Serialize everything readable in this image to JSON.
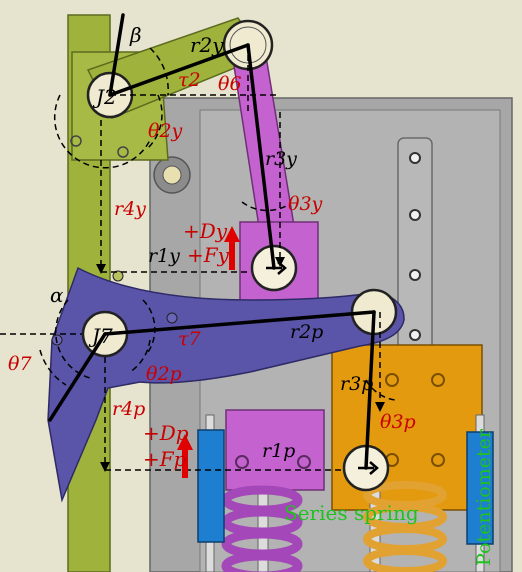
{
  "labels": {
    "beta": "β",
    "r2y": "r2y",
    "tau2": "τ2",
    "theta6": "θ6",
    "J2": "J2",
    "theta2y": "θ2y",
    "r3y": "r3y",
    "theta3y": "θ3y",
    "r4y": "r4y",
    "Dy": "+Dy",
    "Fy": "+Fy",
    "r1y": "r1y",
    "alpha": "α",
    "J7": "J7",
    "tau7": "τ7",
    "r2p": "r2p",
    "theta7": "θ7",
    "theta2p": "θ2p",
    "r3p": "r3p",
    "theta3p": "θ3p",
    "r4p": "r4p",
    "Dp": "+Dp",
    "Fp": "+Fp",
    "r1p": "r1p",
    "series_spring": "Series spring",
    "potentiometer": "Potentiometer"
  },
  "colors": {
    "background": "#e6e4cf",
    "plate": "#a7a7a7",
    "link_green": "#9fb33c",
    "link_magenta": "#c463cf",
    "link_purple": "#5a55a8",
    "block_orange": "#e39a0f",
    "spring_violet": "#a447b8",
    "spring_orange": "#e2a232",
    "sensor_blue": "#1e7ed0",
    "label_red": "#c80000",
    "label_green": "#1fc21f",
    "arrow_red": "#e00000"
  }
}
